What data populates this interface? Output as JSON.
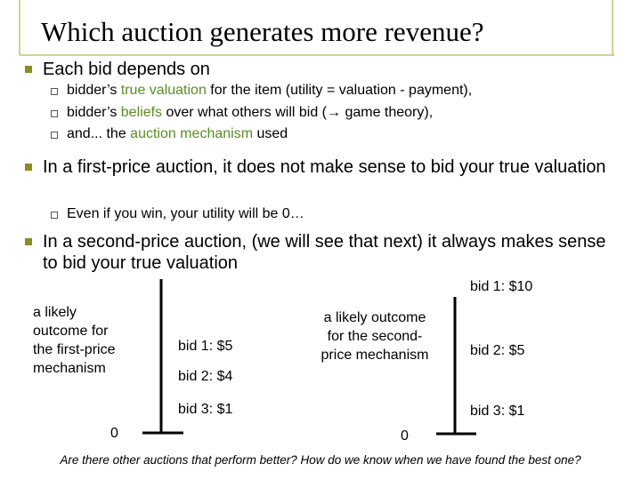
{
  "title": "Which auction generates more revenue?",
  "bullets": [
    {
      "text": "Each bid depends on",
      "subs": [
        {
          "parts": [
            "bidder’s ",
            "true valuation",
            " for the item (utility = valuation - payment),"
          ]
        },
        {
          "parts": [
            "bidder’s ",
            "beliefs",
            " over what others will bid (→ game theory),"
          ]
        },
        {
          "parts": [
            "and... the ",
            "auction mechanism",
            " used"
          ]
        }
      ]
    },
    {
      "text": "In a first-price auction, it does not make sense to bid your true valuation",
      "subs": [
        {
          "parts": [
            "Even if you win, your utility will be 0…"
          ]
        }
      ]
    },
    {
      "text": "In a second-price auction, (we will see that next) it always makes sense to bid your true valuation",
      "subs": []
    }
  ],
  "diagram": {
    "left": {
      "caption": [
        "a likely",
        "outcome for",
        "the first-price",
        "mechanism"
      ],
      "bids": [
        "bid 1: $5",
        "bid 2: $4",
        "bid 3: $1"
      ],
      "zero": "0"
    },
    "right": {
      "caption": [
        "a likely outcome",
        "for the second-",
        "price mechanism"
      ],
      "bids": [
        "bid 1: $10",
        "bid 2: $5",
        "bid 3: $1"
      ],
      "zero": "0"
    }
  },
  "footer": "Are there other auctions that perform better? How do we know when we have found the best one?"
}
